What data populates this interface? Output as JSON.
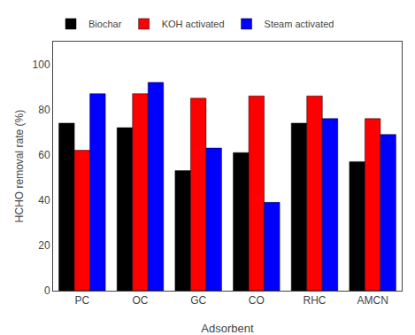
{
  "chart_data": {
    "type": "bar",
    "xlabel": "Adsorbent",
    "ylabel": "HCHO removal rate (%)",
    "categories": [
      "PC",
      "OC",
      "GC",
      "CO",
      "RHC",
      "AMCN"
    ],
    "series": [
      {
        "name": "Biochar",
        "color": "#000000",
        "values": [
          74,
          72,
          53,
          61,
          74,
          57
        ]
      },
      {
        "name": "KOH activated",
        "color": "#ff0000",
        "values": [
          62,
          87,
          85,
          86,
          86,
          76
        ]
      },
      {
        "name": "Steam activated",
        "color": "#0000ff",
        "values": [
          87,
          92,
          63,
          39,
          76,
          69
        ]
      }
    ],
    "ylim": [
      0,
      110
    ],
    "yticks": [
      0,
      20,
      40,
      60,
      80,
      100
    ],
    "grid": false,
    "legend": "upper left"
  }
}
